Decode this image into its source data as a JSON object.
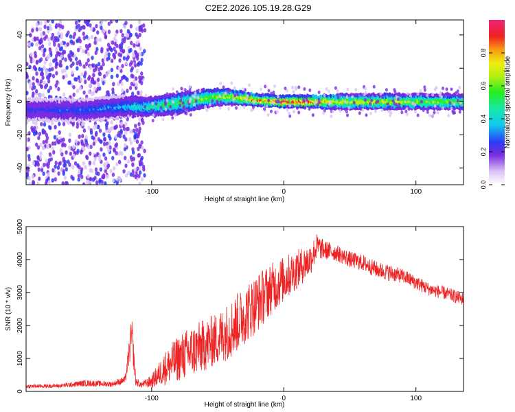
{
  "title": "C2E2.2026.105.19.28.G29",
  "colors": {
    "axis": "#000000",
    "snr_line": "#ee2222",
    "background": "#ffffff"
  },
  "chart_data": [
    {
      "type": "heatmap",
      "title": "C2E2.2026.105.19.28.G29",
      "xlabel": "Height of straight line (km)",
      "ylabel": "Frequency (Hz)",
      "xlim": [
        -195,
        136
      ],
      "ylim": [
        -50,
        49
      ],
      "x_ticks": [
        -100,
        0,
        100
      ],
      "x_tick_labels": [
        "-100",
        "0",
        "100"
      ],
      "y_ticks": [
        -40,
        -20,
        0,
        20,
        40
      ],
      "y_tick_labels": [
        "-40",
        "-20",
        "0",
        "20",
        "40"
      ],
      "colorbar": {
        "label": "Normalized spectral amplitude",
        "range": [
          0,
          1
        ],
        "ticks": [
          0.0,
          0.2,
          0.4,
          0.6,
          0.8
        ],
        "tick_labels": [
          "0.0",
          "0.2",
          "0.4",
          "0.6",
          "0.8"
        ]
      },
      "ridge": {
        "description_points_x": [
          -195,
          -150,
          -120,
          -100,
          -80,
          -60,
          -40,
          -20,
          0,
          20,
          40,
          80,
          136
        ],
        "center_freq": [
          -5,
          -5,
          -3,
          -3,
          -1,
          2,
          3,
          1,
          0,
          0,
          0,
          0,
          0
        ],
        "halfwidth": [
          5,
          5,
          5,
          4,
          5,
          4,
          3,
          2,
          2,
          2,
          3,
          3,
          3
        ],
        "peak_amplitude": [
          0.2,
          0.25,
          0.3,
          0.45,
          0.5,
          0.55,
          0.65,
          0.8,
          0.9,
          0.9,
          0.65,
          0.65,
          0.55
        ]
      },
      "noise_region_x": [
        -195,
        -105
      ]
    },
    {
      "type": "line",
      "title": "",
      "xlabel": "Height of straight line (km)",
      "ylabel": "SNR (10 * v/v)",
      "xlim": [
        -195,
        136
      ],
      "ylim": [
        0,
        5000
      ],
      "x_ticks": [
        -100,
        0,
        100
      ],
      "x_tick_labels": [
        "-100",
        "0",
        "100"
      ],
      "y_ticks": [
        0,
        1000,
        2000,
        3000,
        4000,
        5000
      ],
      "y_tick_labels": [
        "0",
        "1000",
        "2000",
        "3000",
        "4000",
        "5000"
      ],
      "series": [
        {
          "name": "SNR",
          "x": [
            -195,
            -170,
            -150,
            -130,
            -120,
            -115,
            -112,
            -108,
            -100,
            -90,
            -80,
            -70,
            -60,
            -50,
            -40,
            -30,
            -20,
            -10,
            0,
            10,
            20,
            25,
            30,
            40,
            50,
            60,
            70,
            80,
            90,
            100,
            110,
            120,
            136
          ],
          "values": [
            150,
            170,
            250,
            220,
            350,
            1700,
            300,
            200,
            300,
            700,
            1000,
            1200,
            1400,
            1600,
            1900,
            2300,
            2700,
            3100,
            3400,
            3700,
            4000,
            4400,
            4300,
            4200,
            4000,
            3900,
            3700,
            3600,
            3500,
            3300,
            3100,
            3000,
            2800
          ],
          "noise_amp": [
            60,
            60,
            100,
            80,
            120,
            600,
            150,
            80,
            200,
            500,
            700,
            800,
            800,
            800,
            900,
            900,
            900,
            800,
            700,
            600,
            500,
            400,
            300,
            250,
            250,
            250,
            250,
            250,
            220,
            220,
            200,
            200,
            200
          ]
        }
      ]
    }
  ]
}
